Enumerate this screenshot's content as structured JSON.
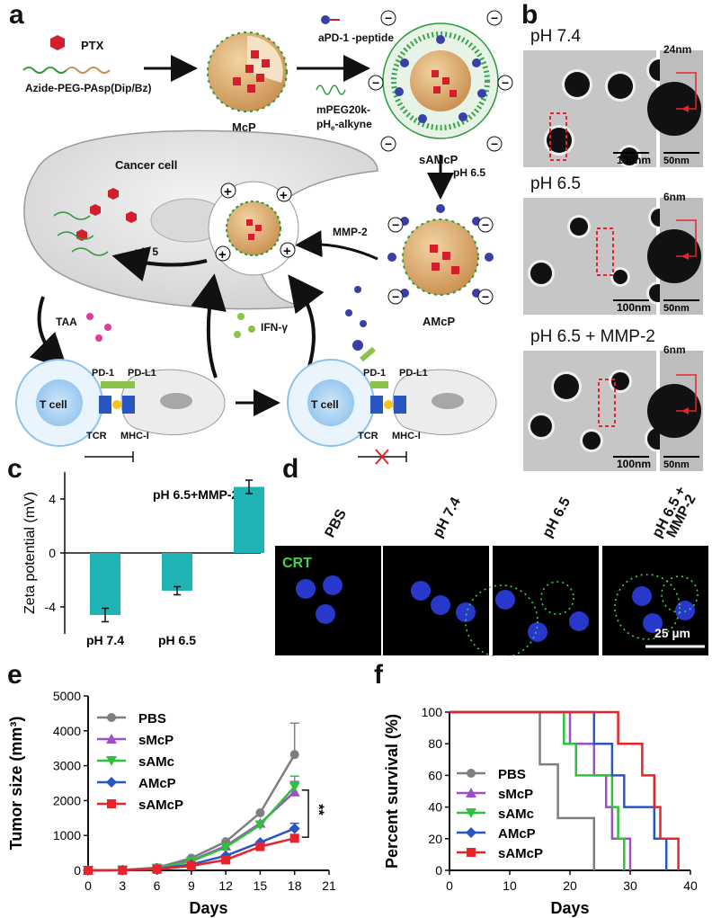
{
  "panels": {
    "a": "a",
    "b": "b",
    "c": "c",
    "d": "d",
    "e": "e",
    "f": "f"
  },
  "schematic": {
    "ptx": "PTX",
    "polymer": "Azide-PEG-PAsp(Dip/Bz)",
    "mcp": "McP",
    "peptide": "aPD-1\n-peptide",
    "mpeg_1": "mPEG20k-",
    "mpeg_2": "pH",
    "mpeg_sub": "e",
    "mpeg_3": "-alkyne",
    "samcp": "sAMcP",
    "ph65": "pH 6.5",
    "cancer_cell": "Cancer cell",
    "mmp2": "MMP-2",
    "ph5": "pH 5",
    "amcp": "AMcP",
    "taa": "TAA",
    "ifn": "IFN-γ",
    "pd1": "PD-1",
    "pdl1": "PD-L1",
    "tcell": "T cell",
    "tcr": "TCR",
    "mhc": "MHC-I"
  },
  "tem": [
    {
      "condition": "pH 7.4",
      "scale_main": "100nm",
      "scale_inset": "50nm",
      "shell": "24nm"
    },
    {
      "condition": "pH 6.5",
      "scale_main": "100nm",
      "scale_inset": "50nm",
      "shell": "6nm"
    },
    {
      "condition": "pH 6.5 + MMP-2",
      "scale_main": "100nm",
      "scale_inset": "50nm",
      "shell": "6nm"
    }
  ],
  "confocal": {
    "columns": [
      "PBS",
      "pH 7.4",
      "pH 6.5",
      "pH 6.5 +\nMMP-2"
    ],
    "stain": "CRT",
    "scale": "25 µm"
  },
  "colors": {
    "teal": "#1fb3b3",
    "gray": "#7f7f7f",
    "purple": "#9b4fc9",
    "green": "#2ec23a",
    "blue": "#2a56c4",
    "red": "#e8232a"
  },
  "chart_data": [
    {
      "type": "bar",
      "title": "pH 6.5+MMP-2",
      "ylabel": "Zeta potential (mV)",
      "categories": [
        "pH 7.4",
        "pH 6.5",
        "pH 6.5+MMP-2"
      ],
      "values": [
        -4.6,
        -2.8,
        4.9
      ],
      "errors": [
        0.5,
        0.3,
        0.5
      ],
      "ylim": [
        -6,
        6
      ],
      "yticks": [
        -4,
        0,
        4
      ],
      "yticklabels": [
        "-4",
        "0",
        "4"
      ]
    },
    {
      "type": "line",
      "xlabel": "Days",
      "ylabel": "Tumor size (mm³)",
      "xlim": [
        0,
        21
      ],
      "ylim": [
        0,
        5000
      ],
      "xticks": [
        0,
        3,
        6,
        9,
        12,
        15,
        18,
        21
      ],
      "yticks": [
        0,
        1000,
        2000,
        3000,
        4000,
        5000
      ],
      "x": [
        0,
        3,
        6,
        9,
        12,
        15,
        18
      ],
      "significance": "**",
      "series": [
        {
          "name": "PBS",
          "values": [
            0,
            10,
            80,
            350,
            820,
            1650,
            3320
          ],
          "error18": 900
        },
        {
          "name": "sMcP",
          "values": [
            0,
            10,
            60,
            280,
            700,
            1350,
            2250
          ],
          "error18": 300
        },
        {
          "name": "sAMc",
          "values": [
            0,
            10,
            60,
            260,
            660,
            1300,
            2400
          ],
          "error18": 300
        },
        {
          "name": "AMcP",
          "values": [
            0,
            5,
            40,
            170,
            420,
            800,
            1200
          ],
          "error18": 150
        },
        {
          "name": "sAMcP",
          "values": [
            0,
            5,
            30,
            130,
            300,
            680,
            920
          ],
          "error18": 100
        }
      ]
    },
    {
      "type": "line",
      "xlabel": "Days",
      "ylabel": "Percent survival (%)",
      "xlim": [
        0,
        40
      ],
      "ylim": [
        0,
        100
      ],
      "xticks": [
        0,
        10,
        20,
        30,
        40
      ],
      "yticks": [
        0,
        20,
        40,
        60,
        80,
        100
      ],
      "series": [
        {
          "name": "PBS",
          "steps": [
            [
              0,
              100
            ],
            [
              15,
              100
            ],
            [
              15,
              67
            ],
            [
              18,
              67
            ],
            [
              18,
              33
            ],
            [
              24,
              33
            ],
            [
              24,
              0
            ]
          ]
        },
        {
          "name": "sMcP",
          "steps": [
            [
              0,
              100
            ],
            [
              20,
              100
            ],
            [
              20,
              80
            ],
            [
              24,
              80
            ],
            [
              24,
              60
            ],
            [
              26,
              60
            ],
            [
              26,
              40
            ],
            [
              27,
              40
            ],
            [
              27,
              20
            ],
            [
              30,
              20
            ],
            [
              30,
              0
            ]
          ]
        },
        {
          "name": "sAMc",
          "steps": [
            [
              0,
              100
            ],
            [
              19,
              100
            ],
            [
              19,
              80
            ],
            [
              21,
              80
            ],
            [
              21,
              60
            ],
            [
              27,
              60
            ],
            [
              27,
              40
            ],
            [
              28,
              40
            ],
            [
              28,
              20
            ],
            [
              29,
              20
            ],
            [
              29,
              0
            ]
          ]
        },
        {
          "name": "AMcP",
          "steps": [
            [
              0,
              100
            ],
            [
              24,
              100
            ],
            [
              24,
              80
            ],
            [
              27,
              80
            ],
            [
              27,
              60
            ],
            [
              29,
              60
            ],
            [
              29,
              40
            ],
            [
              34,
              40
            ],
            [
              34,
              20
            ],
            [
              36,
              20
            ],
            [
              36,
              0
            ]
          ]
        },
        {
          "name": "sAMcP",
          "steps": [
            [
              0,
              100
            ],
            [
              28,
              100
            ],
            [
              28,
              80
            ],
            [
              32,
              80
            ],
            [
              32,
              60
            ],
            [
              34,
              60
            ],
            [
              34,
              40
            ],
            [
              35,
              40
            ],
            [
              35,
              20
            ],
            [
              38,
              20
            ],
            [
              38,
              0
            ]
          ]
        }
      ]
    }
  ]
}
